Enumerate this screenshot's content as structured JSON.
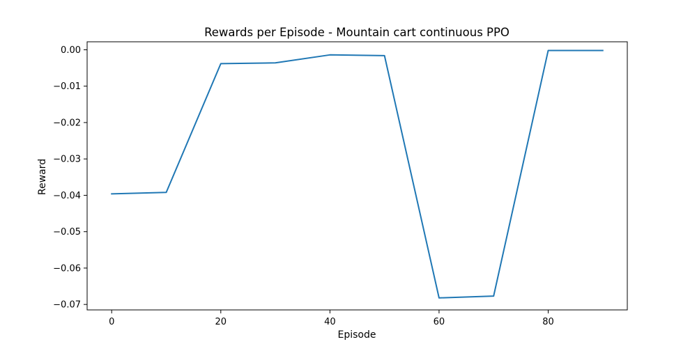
{
  "chart_data": {
    "type": "line",
    "title": "Rewards per Episode - Mountain cart continuous PPO",
    "xlabel": "Episode",
    "ylabel": "Reward",
    "xlim": [
      -4.5,
      94.5
    ],
    "ylim": [
      -0.0715,
      0.0022
    ],
    "grid": false,
    "legend": "none",
    "x_ticks": [
      0,
      20,
      40,
      60,
      80
    ],
    "x_tick_labels": [
      "0",
      "20",
      "40",
      "60",
      "80"
    ],
    "y_ticks": [
      0.0,
      -0.01,
      -0.02,
      -0.03,
      -0.04,
      -0.05,
      -0.06,
      -0.07
    ],
    "y_tick_labels": [
      "0.00",
      "−0.01",
      "−0.02",
      "−0.03",
      "−0.04",
      "−0.05",
      "−0.06",
      "−0.07"
    ],
    "series": [
      {
        "color": "#1f77b4",
        "x": [
          0,
          10,
          20,
          30,
          40,
          50,
          60,
          70,
          80,
          90
        ],
        "y": [
          -0.0396,
          -0.0392,
          -0.0038,
          -0.0036,
          -0.0014,
          -0.0016,
          -0.0682,
          -0.0677,
          -0.0002,
          -0.0002
        ]
      }
    ]
  }
}
